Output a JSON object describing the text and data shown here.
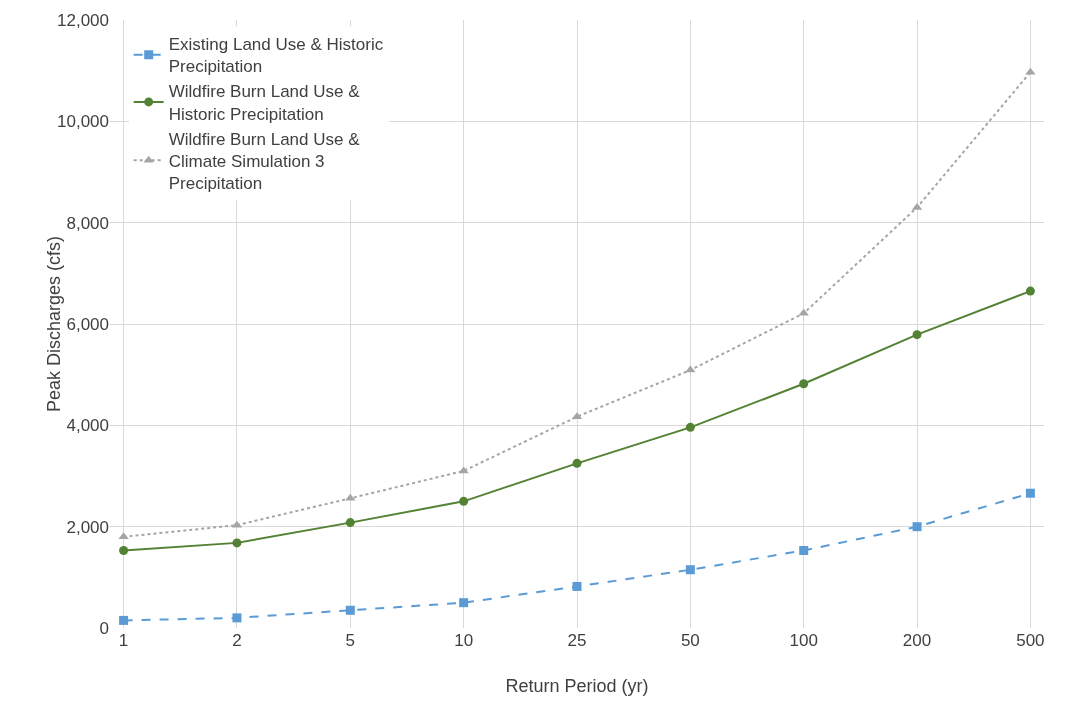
{
  "chart_data": {
    "type": "line",
    "xlabel": "Return Period (yr)",
    "ylabel": "Peak Discharges (cfs)",
    "categories": [
      "1",
      "2",
      "5",
      "10",
      "25",
      "50",
      "100",
      "200",
      "500"
    ],
    "ylim": [
      0,
      12000
    ],
    "yticks": [
      0,
      {
        "value": 2000,
        "label": "2,000"
      },
      {
        "value": 4000,
        "label": "4,000"
      },
      {
        "value": 6000,
        "label": "6,000"
      },
      {
        "value": 8000,
        "label": "8,000"
      },
      {
        "value": 10000,
        "label": "10,000"
      },
      {
        "value": 12000,
        "label": "12,000"
      }
    ],
    "grid": true,
    "legend": "top left",
    "series": [
      {
        "name": "Existing Land Use & Historic Precipitation",
        "color": "#5b9bd5",
        "marker": "square",
        "line_style": "dashed",
        "values": [
          150,
          200,
          350,
          500,
          820,
          1150,
          1530,
          2000,
          2660
        ]
      },
      {
        "name": "Wildfire Burn Land Use & Historic Precipitation",
        "color": "#548235",
        "marker": "circle",
        "line_style": "solid",
        "values": [
          1530,
          1680,
          2080,
          2500,
          3250,
          3960,
          4820,
          5790,
          6650
        ]
      },
      {
        "name": "Wildfire Burn Land Use & Climate Simulation 3 Precipitation",
        "color": "#a5a5a5",
        "marker": "triangle",
        "line_style": "dotted",
        "values": [
          1800,
          2030,
          2560,
          3100,
          4170,
          5090,
          6210,
          8300,
          10970
        ]
      }
    ]
  }
}
